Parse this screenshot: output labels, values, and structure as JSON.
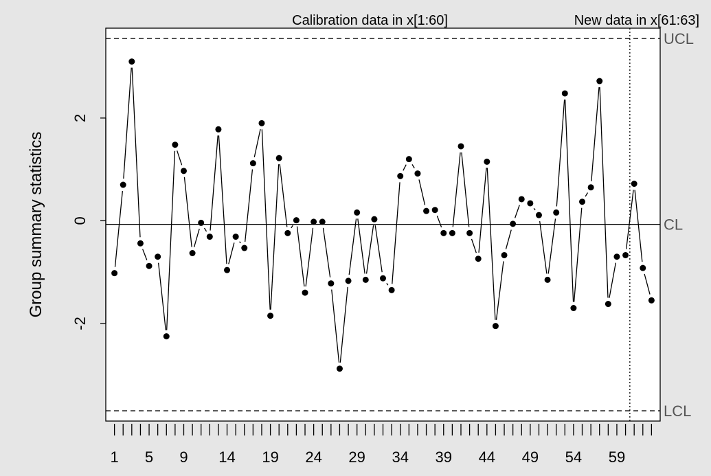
{
  "chart_data": {
    "type": "line",
    "title": "",
    "ylabel": "Group summary statistics",
    "xlabel": "",
    "ylim": [
      -3.9,
      3.75
    ],
    "xlim": [
      0,
      64
    ],
    "x_tick_labels": [
      "1",
      "5",
      "9",
      "14",
      "19",
      "24",
      "29",
      "34",
      "39",
      "44",
      "49",
      "54",
      "59"
    ],
    "y_ticks": [
      -2,
      0,
      2
    ],
    "y_tick_labels": [
      "-2",
      "0",
      "2"
    ],
    "limits": {
      "UCL": {
        "label": "UCL",
        "value": 3.55
      },
      "CL": {
        "label": "CL",
        "value": -0.07
      },
      "LCL": {
        "label": "LCL",
        "value": -3.7
      }
    },
    "calibration_label": "Calibration data in x[1:60]",
    "new_data_label": "New data in x[61:63]",
    "calibration_end": 60,
    "series": [
      {
        "x": [
          1,
          2,
          3,
          4,
          5,
          6,
          7,
          8,
          9,
          10,
          11,
          12,
          13,
          14,
          15,
          16,
          17,
          18,
          19,
          20,
          21,
          22,
          23,
          24,
          25,
          26,
          27,
          28,
          29,
          30,
          31,
          32,
          33,
          34,
          35,
          36,
          37,
          38,
          39,
          40,
          41,
          42,
          43,
          44,
          45,
          46,
          47,
          48,
          49,
          50,
          51,
          52,
          53,
          54,
          55,
          56,
          57,
          58,
          59,
          60,
          61,
          62,
          63
        ],
        "values": [
          -1.02,
          0.7,
          3.1,
          -0.44,
          -0.88,
          -0.7,
          -2.25,
          1.48,
          0.97,
          -0.63,
          -0.04,
          -0.31,
          1.78,
          -0.96,
          -0.31,
          -0.53,
          1.12,
          1.9,
          -1.85,
          1.22,
          -0.24,
          0.01,
          -1.4,
          -0.02,
          -0.02,
          -1.22,
          -2.88,
          -1.17,
          0.16,
          -1.15,
          0.03,
          -1.12,
          -1.35,
          0.87,
          1.2,
          0.92,
          0.19,
          0.21,
          -0.24,
          -0.24,
          1.45,
          -0.24,
          -0.74,
          1.15,
          -2.05,
          -0.67,
          -0.06,
          0.42,
          0.34,
          0.11,
          -1.15,
          0.16,
          2.48,
          -1.7,
          0.37,
          0.65,
          2.72,
          -1.62,
          -0.7,
          -0.67,
          0.72,
          -0.92,
          -1.55
        ]
      }
    ],
    "grid": false,
    "legend": "none"
  }
}
